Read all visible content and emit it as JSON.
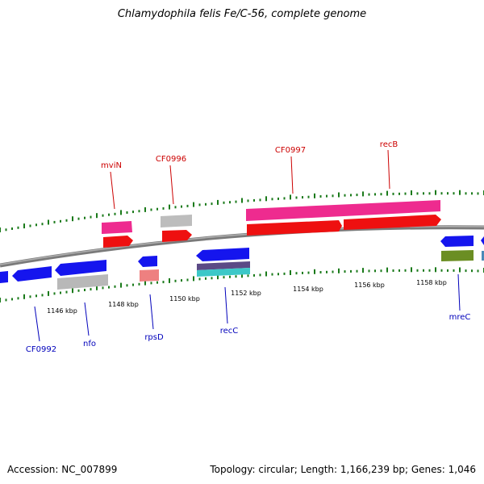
{
  "title": "Chlamydophila felis Fe/C-56, complete genome",
  "footer": {
    "accession": "Accession: NC_007899",
    "summary": "Topology: circular; Length: 1,166,239 bp; Genes: 1,046"
  },
  "colors": {
    "backbone": "#8a8a8a",
    "ticks": "#1a7a1a",
    "label_top": "#cc0000",
    "label_bottom": "#0000bb",
    "blue": "#1515ee",
    "magenta": "#ee2b8f",
    "red": "#ee1010",
    "grey": "#b8b8b8",
    "salmon": "#ee8080",
    "olive": "#6b8e23",
    "teal": "#3cc8c8",
    "purple": "#5b4a86"
  },
  "kbp_labels": [
    "1146 kbp",
    "1148 kbp",
    "1150 kbp",
    "1152 kbp",
    "1154 kbp",
    "1156 kbp",
    "1158 kbp"
  ],
  "top_labels": [
    "mviN",
    "CF0996",
    "CF0997",
    "recB"
  ],
  "bottom_labels": [
    "CF0992",
    "nfo",
    "rpsD",
    "recC",
    "mreC"
  ]
}
